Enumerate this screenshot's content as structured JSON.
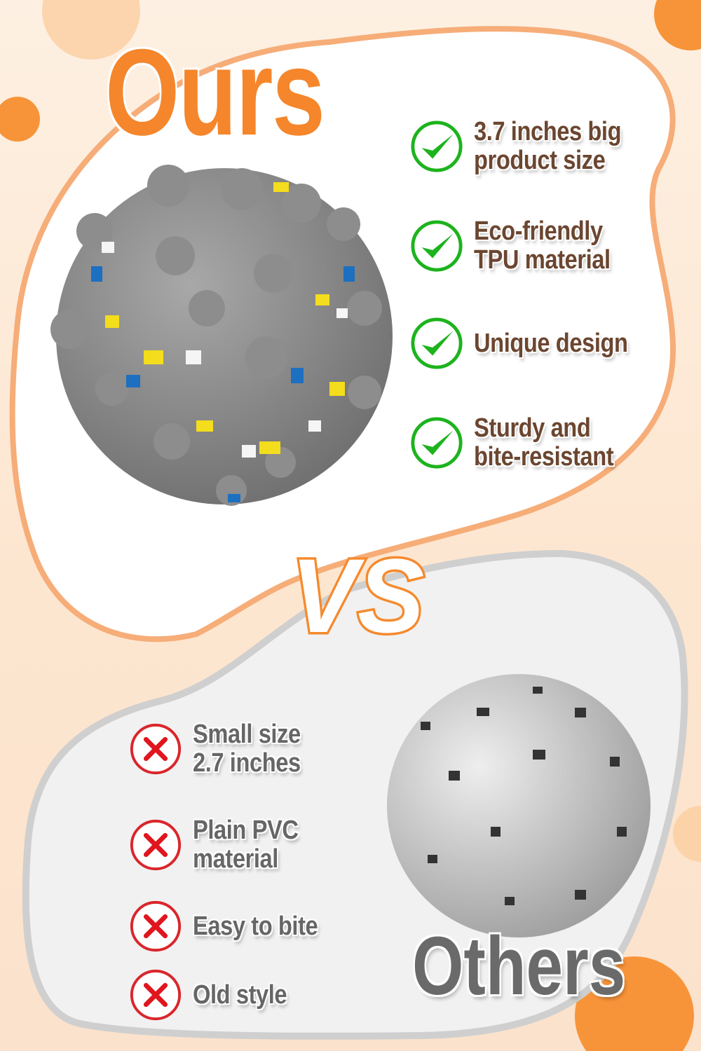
{
  "headline_ours": "Ours",
  "headline_vs": "VS",
  "headline_others": "Others",
  "ours_features": [
    {
      "line1": "3.7 inches big",
      "line2": "product size",
      "icon": "check-icon"
    },
    {
      "line1": "Eco-friendly",
      "line2": "TPU material",
      "icon": "check-icon"
    },
    {
      "line1": "Unique design",
      "line2": "",
      "icon": "check-icon"
    },
    {
      "line1": "Sturdy and",
      "line2": "bite-resistant",
      "icon": "check-icon"
    }
  ],
  "others_features": [
    {
      "line1": "Small size",
      "line2": "2.7 inches",
      "icon": "cross-icon"
    },
    {
      "line1": "Plain PVC",
      "line2": "material",
      "icon": "cross-icon"
    },
    {
      "line1": "Easy to bite",
      "line2": "",
      "icon": "cross-icon"
    },
    {
      "line1": "Old style",
      "line2": "",
      "icon": "cross-icon"
    }
  ],
  "colors": {
    "accent_orange": "#f5862b",
    "check_green": "#1db31d",
    "cross_red": "#d9262c",
    "ours_text": "#6b4630",
    "others_text": "#666666"
  }
}
